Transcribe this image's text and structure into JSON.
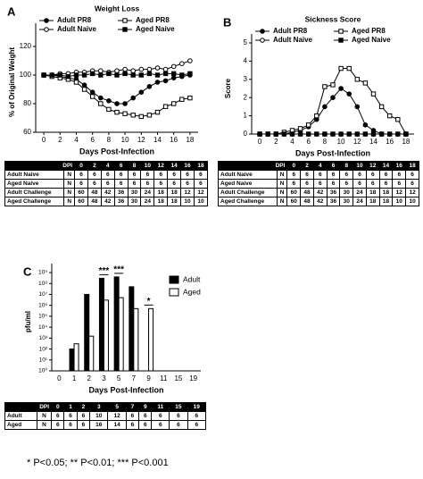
{
  "chart_data": [
    {
      "type": "line",
      "panel": "A",
      "title": "Weight Loss",
      "ylabel": "% of Original Weight",
      "xlabel": "Days Post-Infection",
      "x": [
        0,
        1,
        2,
        3,
        4,
        5,
        6,
        7,
        8,
        9,
        10,
        11,
        12,
        13,
        14,
        15,
        16,
        17,
        18
      ],
      "xlim": [
        -1,
        19
      ],
      "xticks": [
        0,
        2,
        4,
        6,
        8,
        10,
        12,
        14,
        16,
        18
      ],
      "ylim": [
        60,
        130
      ],
      "yticks": [
        60,
        80,
        100,
        120
      ],
      "legend": "top",
      "series": [
        {
          "name": "Adult PR8",
          "color": "#000000",
          "marker": "circle",
          "filled": true,
          "values": [
            100,
            100,
            99,
            98,
            97,
            93,
            88,
            84,
            82,
            80,
            80,
            84,
            88,
            92,
            95,
            96,
            98,
            99,
            100
          ]
        },
        {
          "name": "Aged PR8",
          "color": "#000000",
          "marker": "square",
          "filled": false,
          "values": [
            100,
            99,
            98,
            97,
            95,
            90,
            85,
            80,
            76,
            74,
            73,
            72,
            71,
            72,
            74,
            78,
            80,
            83,
            84
          ]
        },
        {
          "name": "Adult Naive",
          "color": "#000000",
          "marker": "circle",
          "filled": false,
          "values": [
            100,
            100,
            101,
            101,
            102,
            102,
            103,
            103,
            102,
            103,
            104,
            103,
            104,
            104,
            105,
            104,
            106,
            108,
            110
          ]
        },
        {
          "name": "Aged Naive",
          "color": "#000000",
          "marker": "square",
          "filled": true,
          "values": [
            100,
            100,
            100,
            99,
            100,
            100,
            101,
            100,
            101,
            100,
            101,
            100,
            100,
            101,
            100,
            101,
            101,
            100,
            101
          ]
        }
      ]
    },
    {
      "type": "line",
      "panel": "B",
      "title": "Sickness Score",
      "ylabel": "Score",
      "xlabel": "Days Post-Infection",
      "x": [
        0,
        1,
        2,
        3,
        4,
        5,
        6,
        7,
        8,
        9,
        10,
        11,
        12,
        13,
        14,
        15,
        16,
        17,
        18
      ],
      "xlim": [
        -1,
        19
      ],
      "xticks": [
        0,
        2,
        4,
        6,
        8,
        10,
        12,
        14,
        16,
        18
      ],
      "ylim": [
        0,
        5
      ],
      "yticks": [
        0,
        1,
        2,
        3,
        4,
        5
      ],
      "legend": "top",
      "series": [
        {
          "name": "Adult PR8",
          "color": "#000000",
          "marker": "circle",
          "filled": true,
          "values": [
            0,
            0,
            0,
            0,
            0.1,
            0.2,
            0.4,
            0.8,
            1.5,
            2.0,
            2.5,
            2.2,
            1.5,
            0.5,
            0.2,
            0,
            0,
            0,
            0
          ]
        },
        {
          "name": "Aged PR8",
          "color": "#000000",
          "marker": "square",
          "filled": false,
          "values": [
            0,
            0,
            0,
            0.1,
            0.2,
            0.3,
            0.5,
            1.0,
            2.6,
            2.7,
            3.6,
            3.6,
            3.0,
            2.8,
            2.2,
            1.5,
            1.0,
            0.8,
            0
          ]
        },
        {
          "name": "Adult Naive",
          "color": "#000000",
          "marker": "circle",
          "filled": false,
          "values": [
            0,
            0,
            0,
            0,
            0,
            0,
            0,
            0,
            0,
            0,
            0,
            0,
            0,
            0,
            0,
            0,
            0,
            0,
            0
          ]
        },
        {
          "name": "Aged Naive",
          "color": "#000000",
          "marker": "square",
          "filled": true,
          "values": [
            0,
            0,
            0,
            0,
            0,
            0,
            0,
            0,
            0,
            0,
            0,
            0,
            0,
            0,
            0,
            0,
            0,
            0,
            0
          ]
        }
      ]
    },
    {
      "type": "bar",
      "panel": "C",
      "ylabel": "pfu/ml",
      "xlabel": "Days Post-Infection",
      "log_scale": true,
      "categories": [
        "0",
        "1",
        "2",
        "3",
        "5",
        "7",
        "9",
        "11",
        "15",
        "19"
      ],
      "ylim": [
        1,
        1000000000
      ],
      "yticks": [
        {
          "value": 1,
          "label": "10⁰"
        },
        {
          "value": 10,
          "label": "10¹"
        },
        {
          "value": 100,
          "label": "10²"
        },
        {
          "value": 1000,
          "label": "10³"
        },
        {
          "value": 10000,
          "label": "10⁴"
        },
        {
          "value": 100000,
          "label": "10⁵"
        },
        {
          "value": 1000000,
          "label": "10⁶"
        },
        {
          "value": 10000000,
          "label": "10⁷"
        },
        {
          "value": 100000000,
          "label": "10⁸"
        },
        {
          "value": 1000000000,
          "label": "10⁹"
        }
      ],
      "legend": "right",
      "series": [
        {
          "name": "Adult",
          "color": "#000000",
          "values": [
            null,
            100,
            10000000,
            300000000,
            400000000,
            50000000,
            null,
            null,
            null,
            null
          ]
        },
        {
          "name": "Aged",
          "color": "#ffffff",
          "values": [
            null,
            300,
            1500,
            3000000,
            5000000,
            500000,
            500000,
            null,
            null,
            null
          ]
        }
      ],
      "annotations": [
        {
          "text": "***",
          "category": "3"
        },
        {
          "text": "***",
          "category": "5"
        },
        {
          "text": "*",
          "category": "9"
        }
      ]
    }
  ],
  "tables": [
    {
      "header": [
        "DPI",
        "0",
        "2",
        "4",
        "6",
        "8",
        "10",
        "12",
        "14",
        "16",
        "18"
      ],
      "rows": [
        [
          "Adult Naive",
          "N",
          "6",
          "6",
          "6",
          "6",
          "6",
          "6",
          "6",
          "6",
          "6",
          "6"
        ],
        [
          "Aged Naive",
          "N",
          "6",
          "6",
          "6",
          "6",
          "6",
          "6",
          "6",
          "6",
          "6",
          "6"
        ],
        [
          "Adult Challenge",
          "N",
          "60",
          "48",
          "42",
          "36",
          "30",
          "24",
          "18",
          "18",
          "12",
          "12"
        ],
        [
          "Aged Challenge",
          "N",
          "60",
          "48",
          "42",
          "36",
          "30",
          "24",
          "18",
          "18",
          "10",
          "10"
        ]
      ]
    },
    {
      "header": [
        "DPI",
        "0",
        "2",
        "4",
        "6",
        "8",
        "10",
        "12",
        "14",
        "16",
        "18"
      ],
      "rows": [
        [
          "Adult Naive",
          "N",
          "6",
          "6",
          "6",
          "6",
          "6",
          "6",
          "6",
          "6",
          "6",
          "6"
        ],
        [
          "Aged Naive",
          "N",
          "6",
          "6",
          "6",
          "6",
          "6",
          "6",
          "6",
          "6",
          "6",
          "6"
        ],
        [
          "Adult Challenge",
          "N",
          "60",
          "48",
          "42",
          "36",
          "30",
          "24",
          "18",
          "18",
          "12",
          "12"
        ],
        [
          "Aged Challenge",
          "N",
          "60",
          "48",
          "42",
          "36",
          "30",
          "24",
          "18",
          "18",
          "10",
          "10"
        ]
      ]
    },
    {
      "header": [
        "DPI",
        "0",
        "1",
        "2",
        "3",
        "5",
        "7",
        "9",
        "11",
        "15",
        "19"
      ],
      "rows": [
        [
          "Adult",
          "N",
          "6",
          "6",
          "6",
          "10",
          "12",
          "6",
          "6",
          "6",
          "6",
          "6"
        ],
        [
          "Aged",
          "N",
          "6",
          "6",
          "6",
          "16",
          "14",
          "6",
          "6",
          "6",
          "6",
          "6"
        ]
      ]
    }
  ],
  "footnote": "* P<0.05; ** P<0.01; *** P<0.001"
}
